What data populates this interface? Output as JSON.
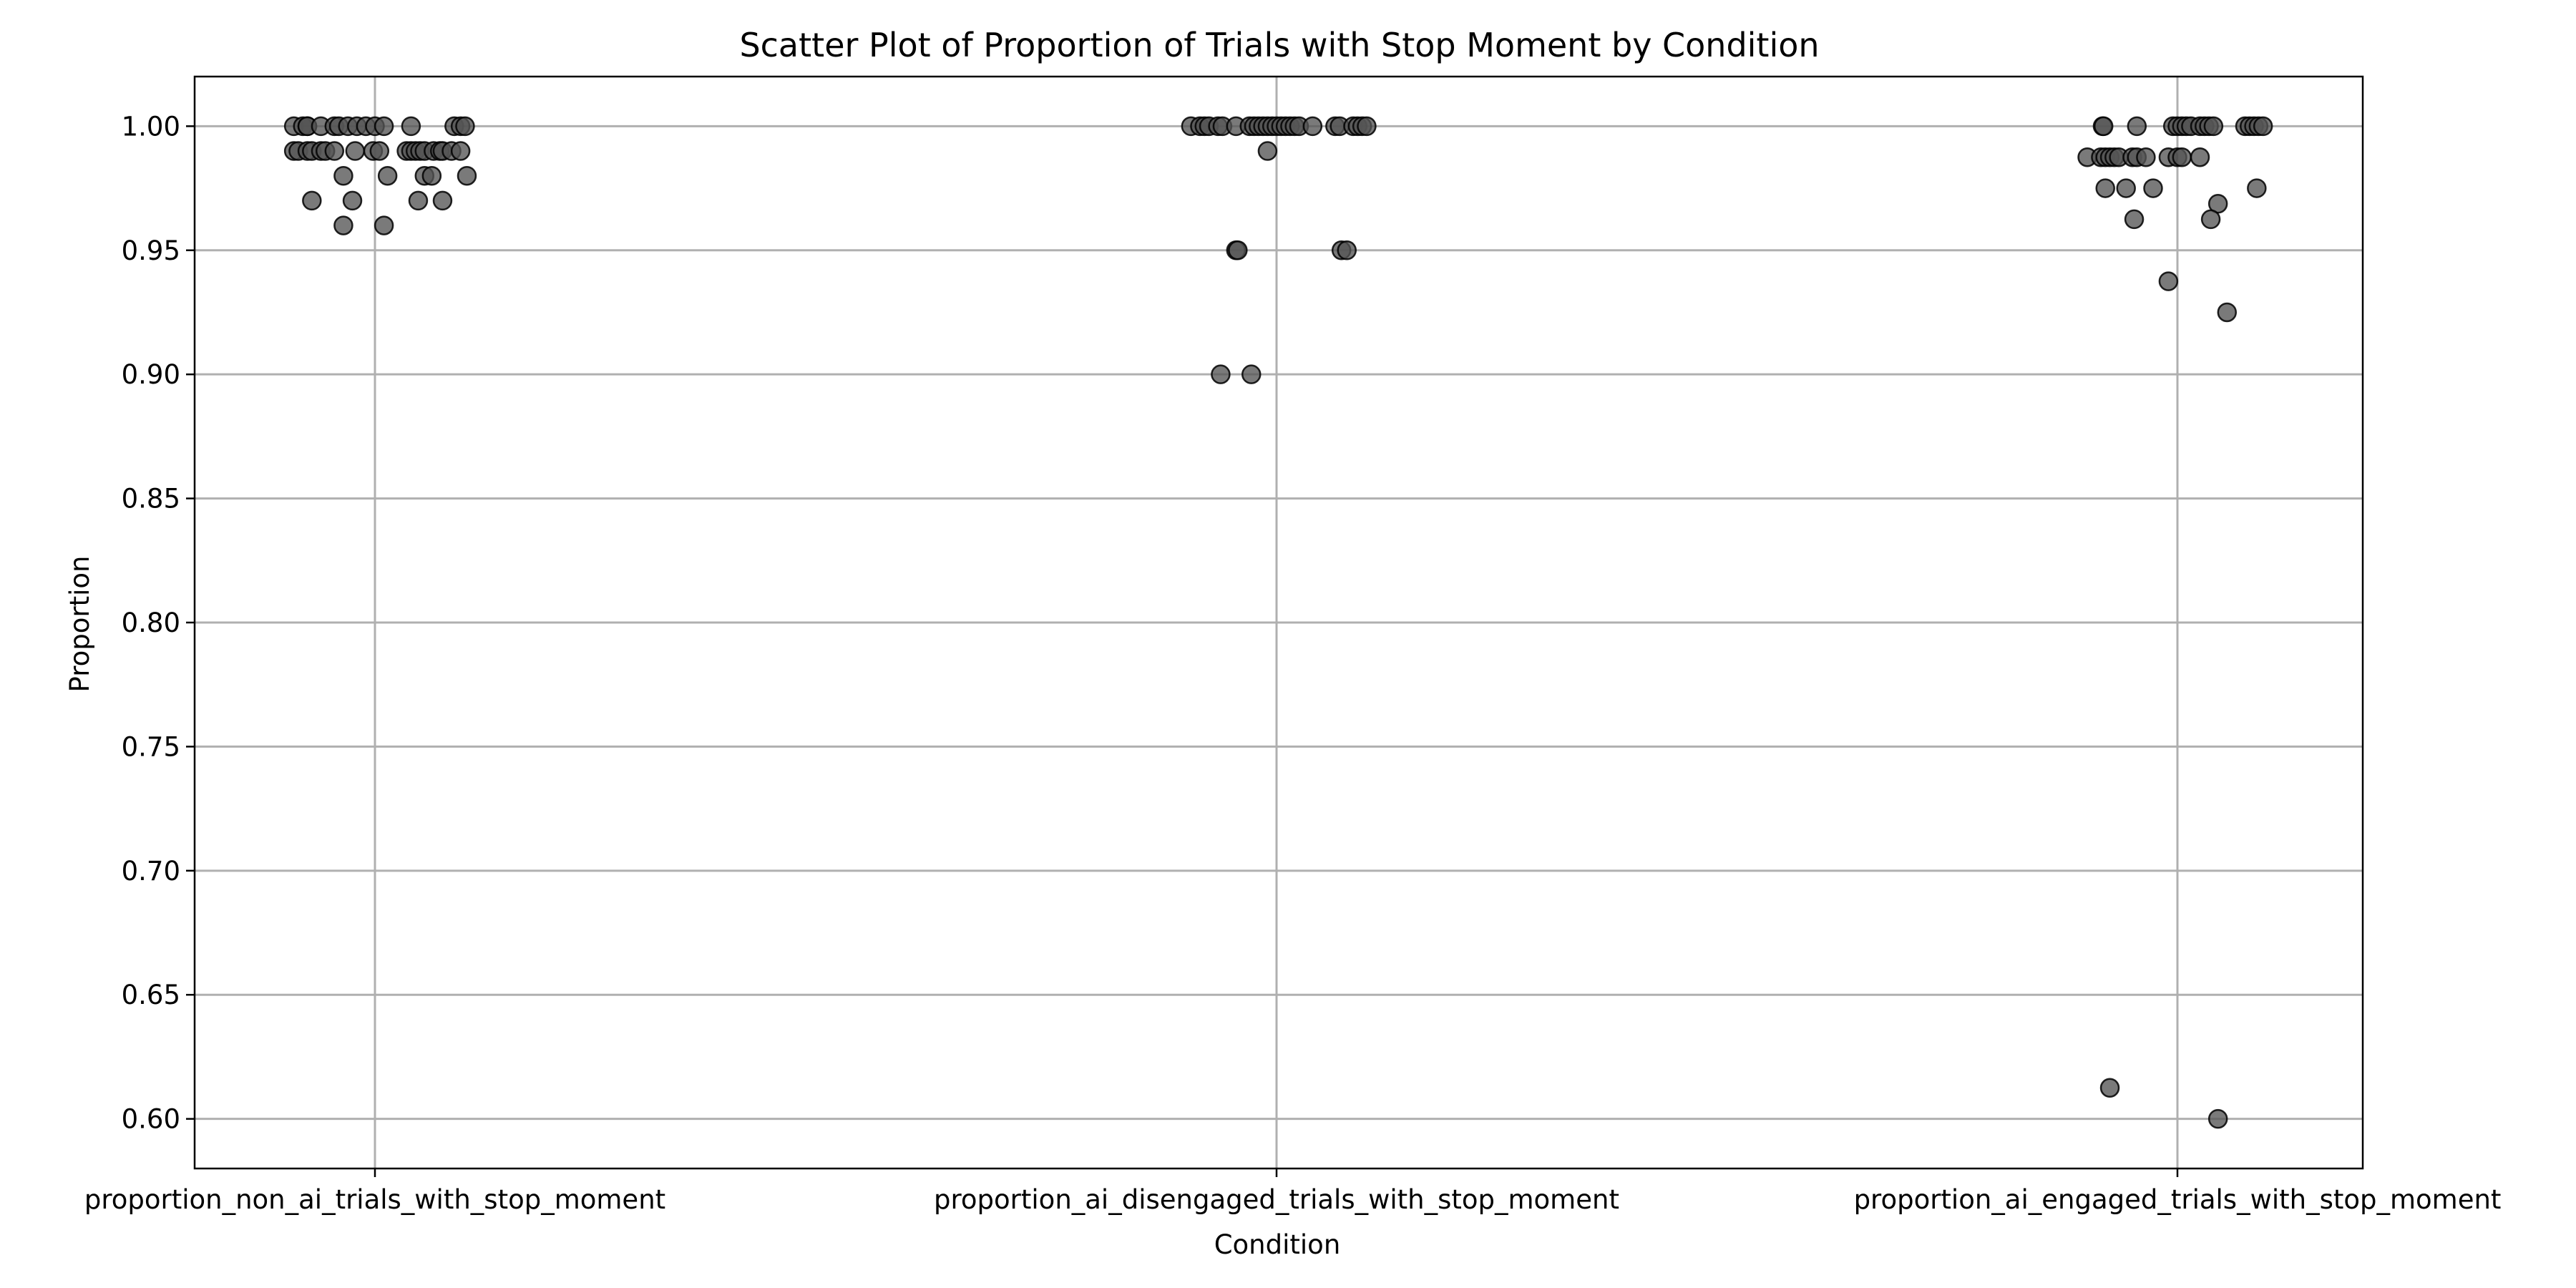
{
  "chart_data": {
    "type": "scatter",
    "title": "Scatter Plot of Proportion of Trials with Stop Moment by Condition",
    "xlabel": "Condition",
    "ylabel": "Proportion",
    "categories": [
      "proportion_non_ai_trials_with_stop_moment",
      "proportion_ai_disengaged_trials_with_stop_moment",
      "proportion_ai_engaged_trials_with_stop_moment"
    ],
    "ylim": [
      0.58,
      1.02
    ],
    "yticks": [
      "0.60",
      "0.65",
      "0.70",
      "0.75",
      "0.80",
      "0.85",
      "0.90",
      "0.95",
      "1.00"
    ],
    "grid": true,
    "legend": "none",
    "marker_color": "#555555",
    "series": [
      {
        "category": "proportion_non_ai_trials_with_stop_moment",
        "points": [
          {
            "x": -0.09,
            "y": 1.0
          },
          {
            "x": -0.08,
            "y": 1.0
          },
          {
            "x": -0.075,
            "y": 1.0
          },
          {
            "x": -0.075,
            "y": 1.0
          },
          {
            "x": -0.06,
            "y": 1.0
          },
          {
            "x": -0.045,
            "y": 1.0
          },
          {
            "x": -0.04,
            "y": 1.0
          },
          {
            "x": -0.03,
            "y": 1.0
          },
          {
            "x": -0.02,
            "y": 1.0
          },
          {
            "x": -0.01,
            "y": 1.0
          },
          {
            "x": 0.0,
            "y": 1.0
          },
          {
            "x": 0.01,
            "y": 1.0
          },
          {
            "x": 0.04,
            "y": 1.0
          },
          {
            "x": 0.088,
            "y": 1.0
          },
          {
            "x": 0.095,
            "y": 1.0
          },
          {
            "x": 0.1,
            "y": 1.0
          },
          {
            "x": -0.09,
            "y": 0.99
          },
          {
            "x": -0.085,
            "y": 0.99
          },
          {
            "x": -0.075,
            "y": 0.99
          },
          {
            "x": -0.07,
            "y": 0.99
          },
          {
            "x": -0.06,
            "y": 0.99
          },
          {
            "x": -0.055,
            "y": 0.99
          },
          {
            "x": -0.045,
            "y": 0.99
          },
          {
            "x": -0.022,
            "y": 0.99
          },
          {
            "x": -0.002,
            "y": 0.99
          },
          {
            "x": 0.005,
            "y": 0.99
          },
          {
            "x": 0.035,
            "y": 0.99
          },
          {
            "x": 0.04,
            "y": 0.99
          },
          {
            "x": 0.045,
            "y": 0.99
          },
          {
            "x": 0.05,
            "y": 0.99
          },
          {
            "x": 0.055,
            "y": 0.99
          },
          {
            "x": 0.065,
            "y": 0.99
          },
          {
            "x": 0.072,
            "y": 0.99
          },
          {
            "x": 0.075,
            "y": 0.99
          },
          {
            "x": 0.085,
            "y": 0.99
          },
          {
            "x": 0.095,
            "y": 0.99
          },
          {
            "x": -0.035,
            "y": 0.98
          },
          {
            "x": 0.014,
            "y": 0.98
          },
          {
            "x": 0.055,
            "y": 0.98
          },
          {
            "x": 0.063,
            "y": 0.98
          },
          {
            "x": 0.102,
            "y": 0.98
          },
          {
            "x": -0.07,
            "y": 0.97
          },
          {
            "x": -0.025,
            "y": 0.97
          },
          {
            "x": 0.048,
            "y": 0.97
          },
          {
            "x": 0.075,
            "y": 0.97
          },
          {
            "x": -0.035,
            "y": 0.96
          },
          {
            "x": 0.01,
            "y": 0.96
          }
        ]
      },
      {
        "category": "proportion_ai_disengaged_trials_with_stop_moment",
        "points": [
          {
            "x": -0.095,
            "y": 1.0
          },
          {
            "x": -0.085,
            "y": 1.0
          },
          {
            "x": -0.08,
            "y": 1.0
          },
          {
            "x": -0.075,
            "y": 1.0
          },
          {
            "x": -0.065,
            "y": 1.0
          },
          {
            "x": -0.06,
            "y": 1.0
          },
          {
            "x": -0.045,
            "y": 1.0
          },
          {
            "x": -0.03,
            "y": 1.0
          },
          {
            "x": -0.025,
            "y": 1.0
          },
          {
            "x": -0.02,
            "y": 1.0
          },
          {
            "x": -0.015,
            "y": 1.0
          },
          {
            "x": -0.01,
            "y": 1.0
          },
          {
            "x": -0.005,
            "y": 1.0
          },
          {
            "x": 0.0,
            "y": 1.0
          },
          {
            "x": 0.005,
            "y": 1.0
          },
          {
            "x": 0.01,
            "y": 1.0
          },
          {
            "x": 0.015,
            "y": 1.0
          },
          {
            "x": 0.02,
            "y": 1.0
          },
          {
            "x": 0.025,
            "y": 1.0
          },
          {
            "x": 0.04,
            "y": 1.0
          },
          {
            "x": 0.065,
            "y": 1.0
          },
          {
            "x": 0.07,
            "y": 1.0
          },
          {
            "x": 0.085,
            "y": 1.0
          },
          {
            "x": 0.09,
            "y": 1.0
          },
          {
            "x": 0.095,
            "y": 1.0
          },
          {
            "x": 0.1,
            "y": 1.0
          },
          {
            "x": -0.01,
            "y": 0.99
          },
          {
            "x": -0.045,
            "y": 0.95
          },
          {
            "x": -0.043,
            "y": 0.95
          },
          {
            "x": 0.072,
            "y": 0.95
          },
          {
            "x": 0.078,
            "y": 0.95
          },
          {
            "x": -0.062,
            "y": 0.9
          },
          {
            "x": -0.028,
            "y": 0.9
          }
        ]
      },
      {
        "category": "proportion_ai_engaged_trials_with_stop_moment",
        "points": [
          {
            "x": -0.083,
            "y": 1.0
          },
          {
            "x": -0.082,
            "y": 1.0
          },
          {
            "x": -0.045,
            "y": 1.0
          },
          {
            "x": -0.005,
            "y": 1.0
          },
          {
            "x": 0.0,
            "y": 1.0
          },
          {
            "x": 0.005,
            "y": 1.0
          },
          {
            "x": 0.01,
            "y": 1.0
          },
          {
            "x": 0.015,
            "y": 1.0
          },
          {
            "x": 0.025,
            "y": 1.0
          },
          {
            "x": 0.03,
            "y": 1.0
          },
          {
            "x": 0.035,
            "y": 1.0
          },
          {
            "x": 0.04,
            "y": 1.0
          },
          {
            "x": 0.075,
            "y": 1.0
          },
          {
            "x": 0.08,
            "y": 1.0
          },
          {
            "x": 0.085,
            "y": 1.0
          },
          {
            "x": 0.09,
            "y": 1.0
          },
          {
            "x": 0.095,
            "y": 1.0
          },
          {
            "x": -0.1,
            "y": 0.9875
          },
          {
            "x": -0.085,
            "y": 0.9875
          },
          {
            "x": -0.08,
            "y": 0.9875
          },
          {
            "x": -0.075,
            "y": 0.9875
          },
          {
            "x": -0.07,
            "y": 0.9875
          },
          {
            "x": -0.065,
            "y": 0.9875
          },
          {
            "x": -0.05,
            "y": 0.9875
          },
          {
            "x": -0.045,
            "y": 0.9875
          },
          {
            "x": -0.035,
            "y": 0.9875
          },
          {
            "x": -0.01,
            "y": 0.9875
          },
          {
            "x": 0.0,
            "y": 0.9875
          },
          {
            "x": 0.005,
            "y": 0.9875
          },
          {
            "x": 0.025,
            "y": 0.9875
          },
          {
            "x": -0.08,
            "y": 0.975
          },
          {
            "x": -0.057,
            "y": 0.975
          },
          {
            "x": -0.027,
            "y": 0.975
          },
          {
            "x": 0.088,
            "y": 0.975
          },
          {
            "x": 0.045,
            "y": 0.96875
          },
          {
            "x": -0.048,
            "y": 0.9625
          },
          {
            "x": 0.037,
            "y": 0.9625
          },
          {
            "x": -0.01,
            "y": 0.9375
          },
          {
            "x": 0.055,
            "y": 0.925
          },
          {
            "x": -0.075,
            "y": 0.6125
          },
          {
            "x": 0.045,
            "y": 0.6
          }
        ]
      }
    ]
  }
}
